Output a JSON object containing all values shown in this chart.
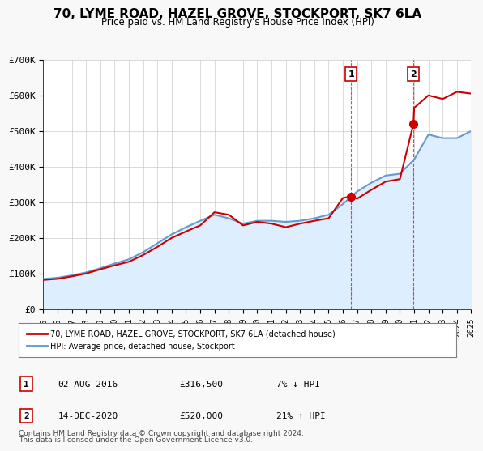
{
  "title": "70, LYME ROAD, HAZEL GROVE, STOCKPORT, SK7 6LA",
  "subtitle": "Price paid vs. HM Land Registry's House Price Index (HPI)",
  "title_fontsize": 11,
  "subtitle_fontsize": 9,
  "xlim": [
    1995,
    2025
  ],
  "ylim": [
    0,
    700000
  ],
  "yticks": [
    0,
    100000,
    200000,
    300000,
    400000,
    500000,
    600000,
    700000
  ],
  "ytick_labels": [
    "£0",
    "£100K",
    "£200K",
    "£300K",
    "£400K",
    "£500K",
    "£600K",
    "£700K"
  ],
  "xticks": [
    1995,
    1996,
    1997,
    1998,
    1999,
    2000,
    2001,
    2002,
    2003,
    2004,
    2005,
    2006,
    2007,
    2008,
    2009,
    2010,
    2011,
    2012,
    2013,
    2014,
    2015,
    2016,
    2017,
    2018,
    2019,
    2020,
    2021,
    2022,
    2023,
    2024,
    2025
  ],
  "property_color": "#cc0000",
  "hpi_color": "#6699cc",
  "hpi_fill_color": "#ddeeff",
  "marker_color": "#cc0000",
  "vline1_x": 2016.58,
  "vline2_x": 2020.95,
  "sale1_label": "1",
  "sale2_label": "2",
  "sale1_x": 2016.58,
  "sale1_y": 316500,
  "sale2_x": 2020.95,
  "sale2_y": 520000,
  "legend_label1": "70, LYME ROAD, HAZEL GROVE, STOCKPORT, SK7 6LA (detached house)",
  "legend_label2": "HPI: Average price, detached house, Stockport",
  "annotation1_num": "1",
  "annotation1_date": "02-AUG-2016",
  "annotation1_price": "£316,500",
  "annotation1_hpi": "7% ↓ HPI",
  "annotation2_num": "2",
  "annotation2_date": "14-DEC-2020",
  "annotation2_price": "£520,000",
  "annotation2_hpi": "21% ↑ HPI",
  "footnote1": "Contains HM Land Registry data © Crown copyright and database right 2024.",
  "footnote2": "This data is licensed under the Open Government Licence v3.0.",
  "background_color": "#f8f8f8",
  "plot_bg_color": "#ffffff"
}
